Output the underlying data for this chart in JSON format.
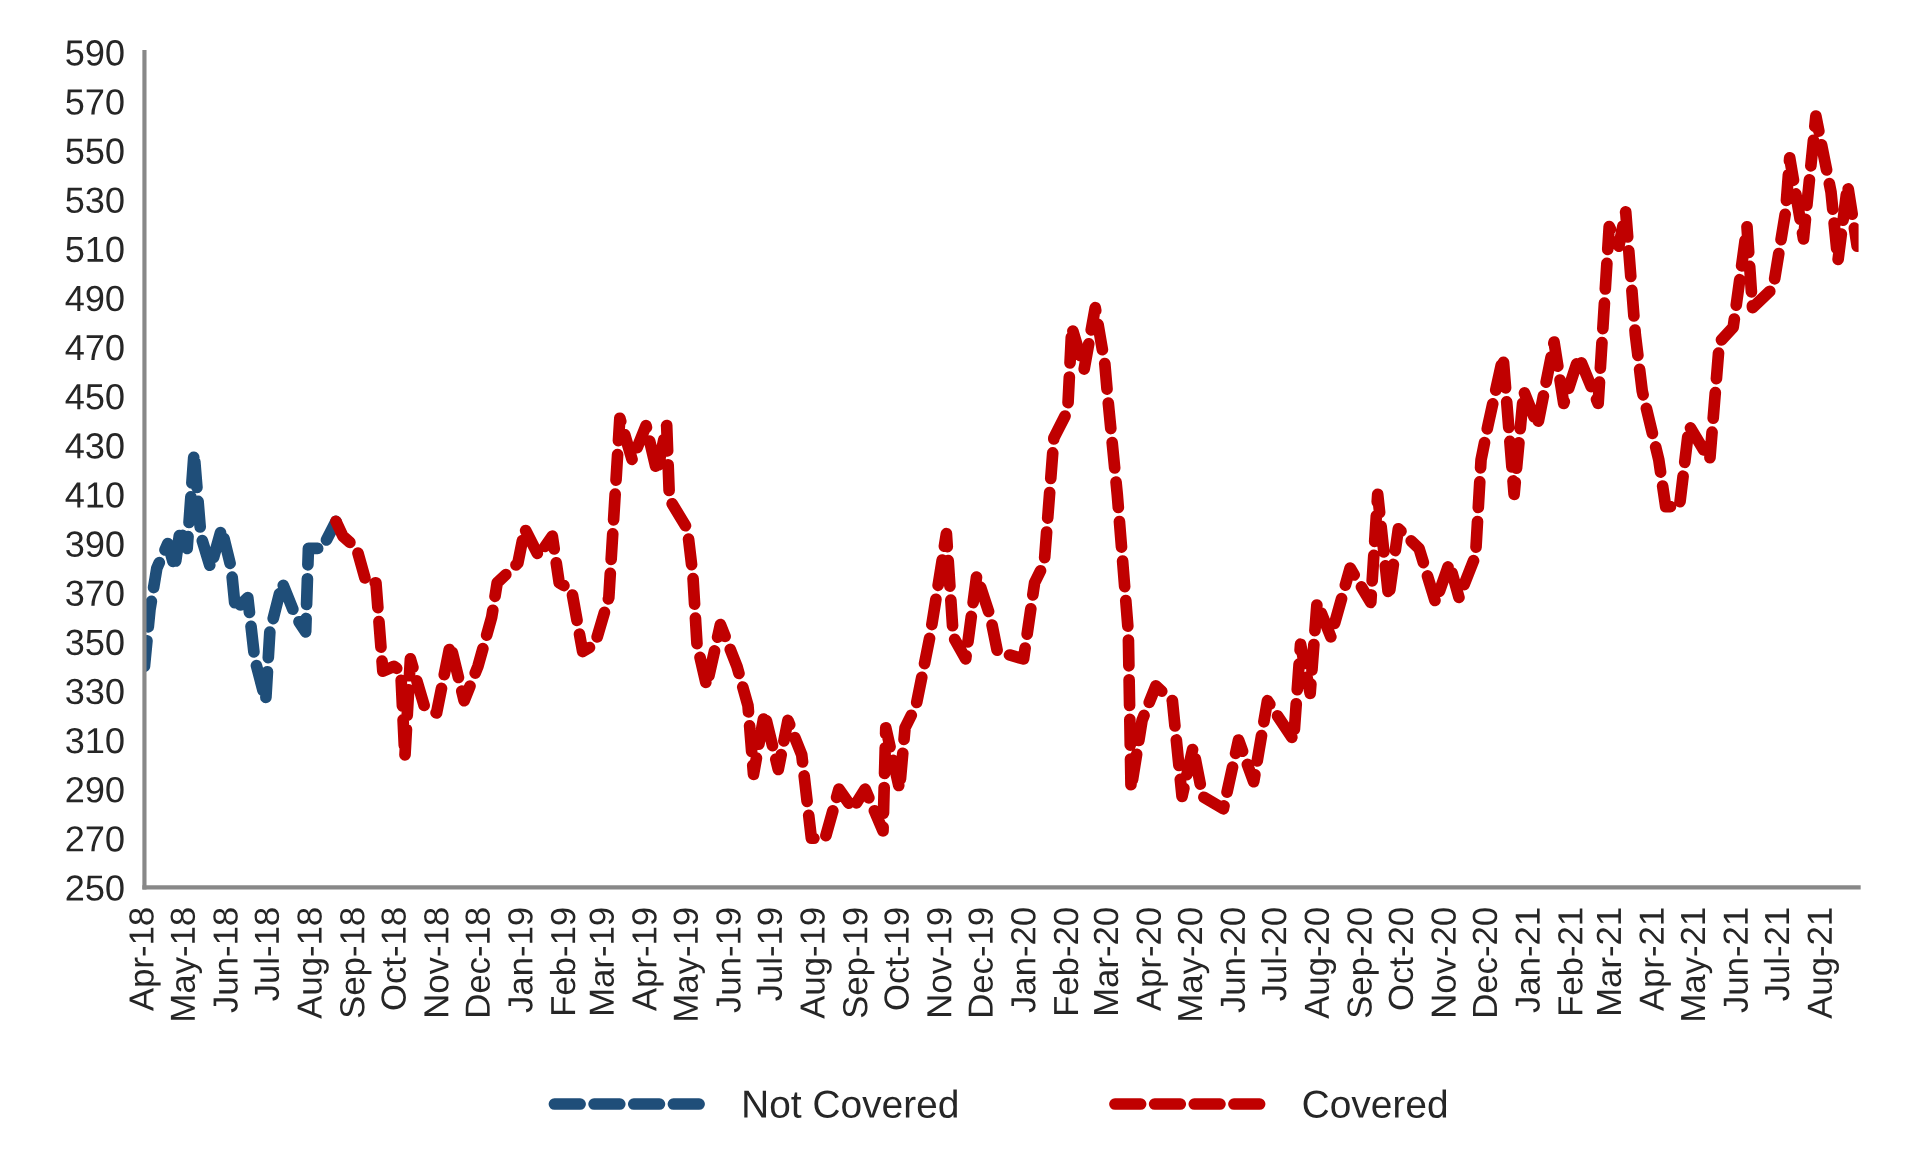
{
  "chart_data": {
    "type": "line",
    "line_style": "dashed",
    "marker": "none",
    "grid": false,
    "legend": "bottom",
    "xlim": [
      "2018-04-01",
      "2021-08-27"
    ],
    "xticks": [
      {
        "value": "2018-04-01",
        "label": "Apr-18"
      },
      {
        "value": "2018-05-01",
        "label": "May-18"
      },
      {
        "value": "2018-06-01",
        "label": "Jun-18"
      },
      {
        "value": "2018-07-01",
        "label": "Jul-18"
      },
      {
        "value": "2018-08-01",
        "label": "Aug-18"
      },
      {
        "value": "2018-09-01",
        "label": "Sep-18"
      },
      {
        "value": "2018-10-01",
        "label": "Oct-18"
      },
      {
        "value": "2018-11-01",
        "label": "Nov-18"
      },
      {
        "value": "2018-12-01",
        "label": "Dec-18"
      },
      {
        "value": "2019-01-01",
        "label": "Jan-19"
      },
      {
        "value": "2019-02-01",
        "label": "Feb-19"
      },
      {
        "value": "2019-03-01",
        "label": "Mar-19"
      },
      {
        "value": "2019-04-01",
        "label": "Apr-19"
      },
      {
        "value": "2019-05-01",
        "label": "May-19"
      },
      {
        "value": "2019-06-01",
        "label": "Jun-19"
      },
      {
        "value": "2019-07-01",
        "label": "Jul-19"
      },
      {
        "value": "2019-08-01",
        "label": "Aug-19"
      },
      {
        "value": "2019-09-01",
        "label": "Sep-19"
      },
      {
        "value": "2019-10-01",
        "label": "Oct-19"
      },
      {
        "value": "2019-11-01",
        "label": "Nov-19"
      },
      {
        "value": "2019-12-01",
        "label": "Dec-19"
      },
      {
        "value": "2020-01-01",
        "label": "Jan-20"
      },
      {
        "value": "2020-02-01",
        "label": "Feb-20"
      },
      {
        "value": "2020-03-01",
        "label": "Mar-20"
      },
      {
        "value": "2020-04-01",
        "label": "Apr-20"
      },
      {
        "value": "2020-05-01",
        "label": "May-20"
      },
      {
        "value": "2020-06-01",
        "label": "Jun-20"
      },
      {
        "value": "2020-07-01",
        "label": "Jul-20"
      },
      {
        "value": "2020-08-01",
        "label": "Aug-20"
      },
      {
        "value": "2020-09-01",
        "label": "Sep-20"
      },
      {
        "value": "2020-10-01",
        "label": "Oct-20"
      },
      {
        "value": "2020-11-01",
        "label": "Nov-20"
      },
      {
        "value": "2020-12-01",
        "label": "Dec-20"
      },
      {
        "value": "2021-01-01",
        "label": "Jan-21"
      },
      {
        "value": "2021-02-01",
        "label": "Feb-21"
      },
      {
        "value": "2021-03-01",
        "label": "Mar-21"
      },
      {
        "value": "2021-04-01",
        "label": "Apr-21"
      },
      {
        "value": "2021-05-01",
        "label": "May-21"
      },
      {
        "value": "2021-06-01",
        "label": "Jun-21"
      },
      {
        "value": "2021-07-01",
        "label": "Jul-21"
      },
      {
        "value": "2021-08-01",
        "label": "Aug-21"
      }
    ],
    "ylim": [
      250,
      590
    ],
    "yticks": [
      250,
      270,
      290,
      310,
      330,
      350,
      370,
      390,
      410,
      430,
      450,
      470,
      490,
      510,
      530,
      550,
      570,
      590
    ],
    "series": [
      {
        "name": "Not Covered",
        "color": "#1f4e79",
        "x": [
          "2018-04-01",
          "2018-04-05",
          "2018-04-10",
          "2018-04-18",
          "2018-04-23",
          "2018-04-27",
          "2018-05-02",
          "2018-05-07",
          "2018-05-12",
          "2018-05-19",
          "2018-05-27",
          "2018-06-03",
          "2018-06-06",
          "2018-06-15",
          "2018-06-20",
          "2018-06-28",
          "2018-07-01",
          "2018-07-10",
          "2018-07-20",
          "2018-07-27",
          "2018-07-29",
          "2018-08-08",
          "2018-08-18"
        ],
        "values": [
          340,
          363,
          380,
          390,
          380,
          396,
          388,
          427,
          393,
          380,
          396,
          380,
          363,
          368,
          343,
          326,
          354,
          374,
          360,
          354,
          388,
          388,
          399
        ]
      },
      {
        "name": "Covered",
        "color": "#c00000",
        "x": [
          "2018-08-18",
          "2018-08-23",
          "2018-09-02",
          "2018-09-09",
          "2018-09-16",
          "2018-09-21",
          "2018-09-29",
          "2018-10-04",
          "2018-10-07",
          "2018-10-11",
          "2018-10-21",
          "2018-10-30",
          "2018-11-09",
          "2018-11-19",
          "2018-11-29",
          "2018-12-09",
          "2018-12-13",
          "2018-12-28",
          "2019-01-02",
          "2019-01-12",
          "2019-01-22",
          "2019-01-27",
          "2019-02-05",
          "2019-02-13",
          "2019-02-22",
          "2019-03-04",
          "2019-03-12",
          "2019-03-21",
          "2019-03-31",
          "2019-04-08",
          "2019-04-15",
          "2019-04-17",
          "2019-04-30",
          "2019-05-04",
          "2019-05-07",
          "2019-05-14",
          "2019-05-24",
          "2019-06-05",
          "2019-06-13",
          "2019-06-17",
          "2019-06-25",
          "2019-07-05",
          "2019-07-12",
          "2019-07-22",
          "2019-07-29",
          "2019-08-08",
          "2019-08-18",
          "2019-08-28",
          "2019-09-06",
          "2019-09-19",
          "2019-09-21",
          "2019-10-01",
          "2019-10-05",
          "2019-10-13",
          "2019-10-23",
          "2019-11-04",
          "2019-11-09",
          "2019-11-18",
          "2019-11-26",
          "2019-12-06",
          "2019-12-11",
          "2019-12-30",
          "2020-01-07",
          "2020-01-14",
          "2020-01-21",
          "2020-01-31",
          "2020-02-03",
          "2020-02-12",
          "2020-02-20",
          "2020-02-27",
          "2020-02-29",
          "2020-03-07",
          "2020-03-15",
          "2020-03-17",
          "2020-03-25",
          "2020-04-04",
          "2020-04-16",
          "2020-04-23",
          "2020-05-01",
          "2020-05-08",
          "2020-05-23",
          "2020-06-03",
          "2020-06-14",
          "2020-06-24",
          "2020-07-13",
          "2020-07-18",
          "2020-07-25",
          "2020-07-30",
          "2020-08-09",
          "2020-08-23",
          "2020-09-07",
          "2020-09-12",
          "2020-09-20",
          "2020-09-27",
          "2020-10-12",
          "2020-10-24",
          "2020-11-03",
          "2020-11-10",
          "2020-11-22",
          "2020-11-26",
          "2020-12-01",
          "2020-12-12",
          "2020-12-20",
          "2020-12-27",
          "2021-01-06",
          "2021-01-18",
          "2021-01-25",
          "2021-02-05",
          "2021-02-19",
          "2021-02-27",
          "2021-03-06",
          "2021-03-11",
          "2021-03-18",
          "2021-03-23",
          "2021-04-04",
          "2021-04-09",
          "2021-04-19",
          "2021-04-26",
          "2021-05-11",
          "2021-05-18",
          "2021-05-28",
          "2021-06-07",
          "2021-06-11",
          "2021-06-26",
          "2021-07-05",
          "2021-07-08",
          "2021-07-18",
          "2021-07-27",
          "2021-08-07",
          "2021-08-12",
          "2021-08-19",
          "2021-08-26"
        ],
        "values": [
          399,
          393,
          388,
          374,
          374,
          338,
          340,
          338,
          303,
          343,
          324,
          321,
          349,
          326,
          340,
          360,
          374,
          382,
          396,
          385,
          393,
          374,
          371,
          346,
          349,
          368,
          441,
          424,
          438,
          419,
          438,
          408,
          396,
          377,
          349,
          332,
          357,
          340,
          324,
          296,
          321,
          298,
          318,
          304,
          270,
          270,
          290,
          282,
          290,
          273,
          315,
          290,
          315,
          324,
          352,
          394,
          352,
          343,
          377,
          360,
          346,
          343,
          374,
          382,
          433,
          444,
          478,
          461,
          486,
          463,
          450,
          410,
          354,
          290,
          318,
          332,
          326,
          287,
          307,
          287,
          282,
          310,
          293,
          326,
          310,
          349,
          329,
          366,
          352,
          380,
          366,
          410,
          368,
          396,
          388,
          366,
          382,
          368,
          385,
          424,
          438,
          466,
          410,
          452,
          438,
          472,
          447,
          466,
          447,
          519,
          511,
          525,
          475,
          452,
          424,
          405,
          405,
          438,
          424,
          472,
          478,
          519,
          486,
          494,
          525,
          547,
          514,
          564,
          533,
          505,
          536,
          511
        ]
      }
    ]
  }
}
